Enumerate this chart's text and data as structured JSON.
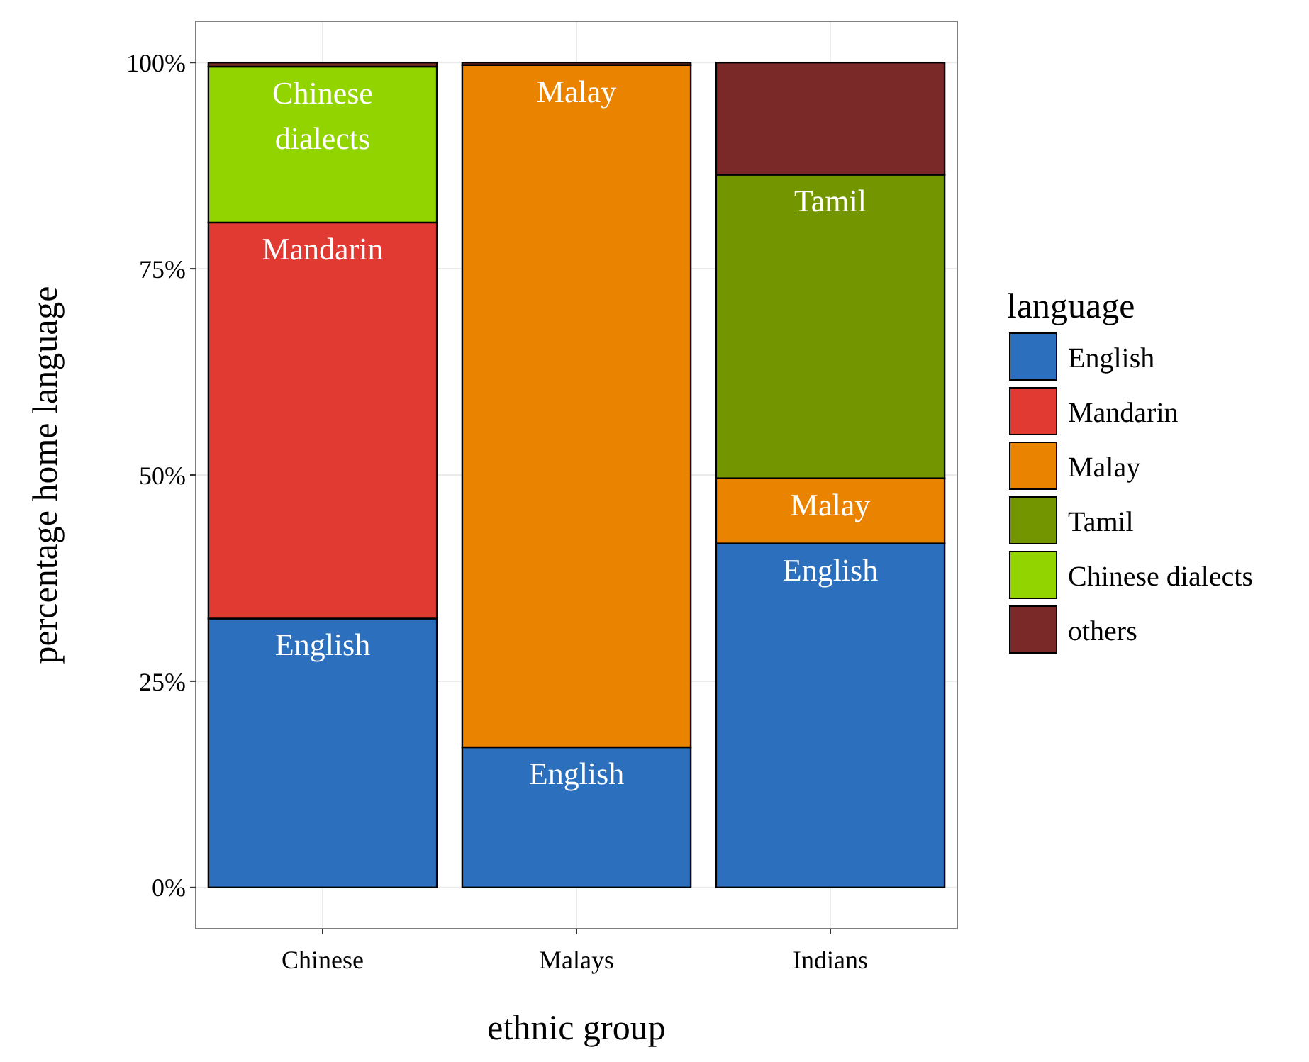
{
  "chart_data": {
    "type": "bar",
    "stacked": true,
    "xlabel": "ethnic group",
    "ylabel": "percentage home language",
    "legend_title": "language",
    "legend": "right",
    "grid": true,
    "categories": [
      "Chinese",
      "Malays",
      "Indians"
    ],
    "ylim": [
      -5,
      105
    ],
    "yticks": [
      {
        "value": 0,
        "label": "0%"
      },
      {
        "value": 25,
        "label": "25%"
      },
      {
        "value": 50,
        "label": "50%"
      },
      {
        "value": 75,
        "label": "75%"
      },
      {
        "value": 100,
        "label": "100%"
      }
    ],
    "series": [
      {
        "name": "English",
        "color": "#2b6fbd",
        "values": [
          32.6,
          17.0,
          41.7
        ],
        "value_labels": [
          "English",
          "English",
          "English"
        ]
      },
      {
        "name": "Mandarin",
        "color": "#e03a33",
        "values": [
          48.0,
          null,
          null
        ],
        "value_labels": [
          "Mandarin",
          null,
          null
        ]
      },
      {
        "name": "Malay",
        "color": "#e98300",
        "values": [
          null,
          82.7,
          7.9
        ],
        "value_labels": [
          null,
          "Malay",
          "Malay"
        ]
      },
      {
        "name": "Tamil",
        "color": "#739600",
        "values": [
          null,
          null,
          36.8
        ],
        "value_labels": [
          null,
          null,
          "Tamil"
        ]
      },
      {
        "name": "Chinese dialects",
        "color": "#92d400",
        "values": [
          18.9,
          null,
          null
        ],
        "value_labels": [
          "Chinese dialects",
          null,
          null
        ]
      },
      {
        "name": "others",
        "color": "#7a2828",
        "values": [
          0.5,
          0.3,
          13.6
        ],
        "value_labels": [
          null,
          null,
          null
        ]
      }
    ]
  }
}
